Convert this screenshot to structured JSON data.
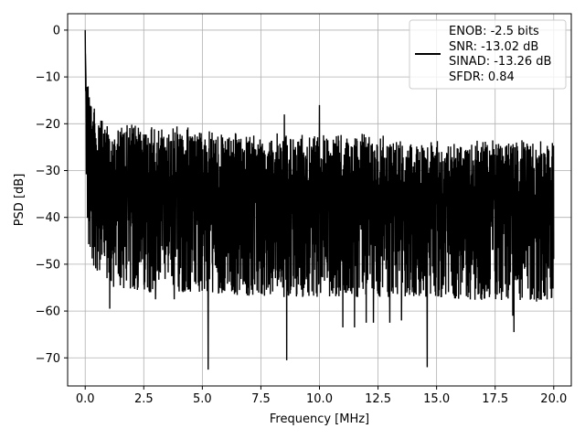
{
  "chart_data": {
    "type": "line",
    "title": "",
    "xlabel": "Frequency [MHz]",
    "ylabel": "PSD [dB]",
    "xlim": [
      -0.75,
      20.75
    ],
    "ylim": [
      -76,
      3.5
    ],
    "x_ticks": [
      0.0,
      2.5,
      5.0,
      7.5,
      10.0,
      12.5,
      15.0,
      17.5,
      20.0
    ],
    "x_tick_labels": [
      "0.0",
      "2.5",
      "5.0",
      "7.5",
      "10.0",
      "12.5",
      "15.0",
      "17.5",
      "20.0"
    ],
    "y_ticks": [
      0,
      -10,
      -20,
      -30,
      -40,
      -50,
      -60,
      -70
    ],
    "y_tick_labels": [
      "0",
      "−10",
      "−20",
      "−30",
      "−40",
      "−50",
      "−60",
      "−70"
    ],
    "grid": true,
    "legend_position": "top-right",
    "line_color": "#000000",
    "series": [
      {
        "name": "",
        "x_range": [
          0,
          20
        ],
        "noise_floor_envelope": {
          "x": [
            0.05,
            0.3,
            0.6,
            1,
            2.5,
            5,
            7.5,
            10,
            12.5,
            15,
            17.5,
            20
          ],
          "upper": [
            -8,
            -15,
            -18,
            -20,
            -20,
            -21,
            -22,
            -22,
            -22,
            -23,
            -23,
            -23
          ],
          "lower": [
            -45,
            -50,
            -52,
            -55,
            -56,
            -56,
            -57,
            -57,
            -57,
            -57,
            -58,
            -58
          ]
        },
        "peaks": [
          {
            "x": 0.0,
            "y": 0.0
          },
          {
            "x": 10.0,
            "y": -16.0
          },
          {
            "x": 8.5,
            "y": -18.0
          }
        ],
        "dips": [
          {
            "x": 5.25,
            "y": -72.5
          },
          {
            "x": 8.6,
            "y": -70.5
          },
          {
            "x": 14.6,
            "y": -72.0
          },
          {
            "x": 18.3,
            "y": -64.5
          },
          {
            "x": 18.25,
            "y": -61.0
          },
          {
            "x": 11.0,
            "y": -63.5
          },
          {
            "x": 11.5,
            "y": -63.5
          },
          {
            "x": 12.0,
            "y": -62.5
          },
          {
            "x": 12.3,
            "y": -62.5
          },
          {
            "x": 13.0,
            "y": -62.5
          },
          {
            "x": 13.5,
            "y": -62.0
          },
          {
            "x": 1.05,
            "y": -59.5
          },
          {
            "x": 2.25,
            "y": -55.0
          },
          {
            "x": 3.0,
            "y": -57.5
          },
          {
            "x": 3.8,
            "y": -57.5
          },
          {
            "x": 7.8,
            "y": -55.0
          },
          {
            "x": 9.5,
            "y": -56.0
          },
          {
            "x": 10.8,
            "y": -55.0
          }
        ]
      }
    ],
    "legend": {
      "lines": [
        "ENOB: -2.5 bits",
        "SNR: -13.02 dB",
        "SINAD: -13.26 dB",
        "SFDR: 0.84"
      ]
    }
  }
}
